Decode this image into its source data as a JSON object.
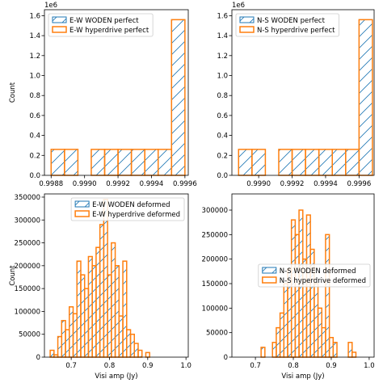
{
  "chart_data": [
    {
      "type": "histogram",
      "ylabel": "Count",
      "offset_text": "1e6",
      "legend": "upper left",
      "hatch": true,
      "bins": [
        0.9988,
        0.99888,
        0.99896,
        0.99904,
        0.99912,
        0.9992,
        0.99928,
        0.99936,
        0.99944,
        0.99952,
        0.9996
      ],
      "series": [
        {
          "name": "E-W WODEN perfect",
          "color": "#1f77b4",
          "style": "hatched",
          "values": [
            0.26,
            0.26,
            0,
            0.26,
            0.26,
            0.26,
            0.26,
            0.26,
            0.26,
            1.56
          ]
        },
        {
          "name": "E-W hyperdrive perfect",
          "color": "#ff7f0e",
          "style": "step",
          "values": [
            0.26,
            0.26,
            0,
            0.26,
            0.26,
            0.26,
            0.26,
            0.26,
            0.26,
            1.56
          ]
        }
      ],
      "xlim": [
        0.99876,
        0.99962
      ],
      "xticks": [
        0.9988,
        {
          "value": 0.999,
          "label": "0.9990"
        },
        0.9992,
        0.9994,
        0.9996
      ],
      "ylim": [
        0,
        1.66
      ],
      "yticks": [
        {
          "value": 0,
          "label": "0.0"
        },
        0.2,
        0.4,
        0.6,
        0.8,
        {
          "value": 1,
          "label": "1.0"
        },
        1.2,
        1.4,
        1.6
      ]
    },
    {
      "type": "histogram",
      "offset_text": "1e6",
      "legend": "upper left",
      "hatch": true,
      "bins": [
        0.99888,
        0.99896,
        0.99904,
        0.99912,
        0.9992,
        0.99928,
        0.99936,
        0.99944,
        0.99952,
        0.9996,
        0.99968
      ],
      "series": [
        {
          "name": "N-S WODEN perfect",
          "color": "#1f77b4",
          "style": "hatched",
          "values": [
            0.26,
            0.26,
            0,
            0.26,
            0.26,
            0.26,
            0.26,
            0.26,
            0.26,
            1.56
          ]
        },
        {
          "name": "N-S hyperdrive perfect",
          "color": "#ff7f0e",
          "style": "step",
          "values": [
            0.26,
            0.26,
            0,
            0.26,
            0.26,
            0.26,
            0.26,
            0.26,
            0.26,
            1.56
          ]
        }
      ],
      "xlim": [
        0.99884,
        0.99969
      ],
      "xticks": [
        {
          "value": 0.999,
          "label": "0.9990"
        },
        0.9992,
        0.9994,
        0.9996
      ],
      "ylim": [
        0,
        1.66
      ],
      "yticks": [
        {
          "value": 0,
          "label": "0.0"
        },
        0.2,
        0.4,
        0.6,
        0.8,
        {
          "value": 1,
          "label": "1.0"
        },
        1.2,
        1.4,
        1.6
      ]
    },
    {
      "type": "histogram",
      "ylabel": "Count",
      "xlabel": "Visi amp (Jy)",
      "legend": "upper right",
      "hatch": true,
      "bins": [
        0.645,
        0.655,
        0.665,
        0.675,
        0.685,
        0.695,
        0.705,
        0.715,
        0.725,
        0.735,
        0.745,
        0.755,
        0.765,
        0.775,
        0.785,
        0.795,
        0.805,
        0.815,
        0.825,
        0.835,
        0.845,
        0.855,
        0.865,
        0.875,
        0.885,
        0.895,
        0.905
      ],
      "series": [
        {
          "name": "E-W WODEN deformed",
          "color": "#1f77b4",
          "style": "hatched",
          "values": [
            15000,
            5000,
            45000,
            80000,
            60000,
            110000,
            95000,
            210000,
            180000,
            150000,
            220000,
            200000,
            240000,
            290000,
            345000,
            180000,
            250000,
            200000,
            90000,
            210000,
            60000,
            50000,
            30000,
            15000,
            0,
            10000
          ]
        },
        {
          "name": "E-W hyperdrive deformed",
          "color": "#ff7f0e",
          "style": "step",
          "values": [
            15000,
            5000,
            45000,
            80000,
            60000,
            110000,
            95000,
            210000,
            180000,
            150000,
            220000,
            200000,
            240000,
            290000,
            345000,
            180000,
            250000,
            200000,
            90000,
            210000,
            60000,
            50000,
            30000,
            15000,
            0,
            10000
          ]
        }
      ],
      "xlim": [
        0.63,
        1.006
      ],
      "xticks": [
        0.7,
        0.8,
        0.9,
        {
          "value": 1,
          "label": "1.0"
        }
      ],
      "ylim": [
        0,
        357000
      ],
      "yticks": [
        0,
        50000,
        100000,
        150000,
        200000,
        250000,
        300000,
        350000
      ]
    },
    {
      "type": "histogram",
      "xlabel": "Visi amp (Jy)",
      "legend": "center right",
      "hatch": true,
      "bins": [
        0.715,
        0.725,
        0.735,
        0.745,
        0.755,
        0.765,
        0.775,
        0.785,
        0.795,
        0.805,
        0.815,
        0.825,
        0.835,
        0.845,
        0.855,
        0.865,
        0.875,
        0.885,
        0.895,
        0.905,
        0.915,
        0.925,
        0.935,
        0.945,
        0.955,
        0.965,
        0.975
      ],
      "series": [
        {
          "name": "N-S WODEN deformed",
          "color": "#1f77b4",
          "style": "hatched",
          "values": [
            20000,
            0,
            0,
            30000,
            60000,
            90000,
            150000,
            180000,
            280000,
            250000,
            300000,
            200000,
            290000,
            220000,
            150000,
            100000,
            60000,
            250000,
            40000,
            30000,
            0,
            0,
            0,
            30000,
            10000,
            0
          ]
        },
        {
          "name": "N-S hyperdrive deformed",
          "color": "#ff7f0e",
          "style": "step",
          "values": [
            20000,
            0,
            0,
            30000,
            60000,
            90000,
            150000,
            180000,
            280000,
            250000,
            300000,
            200000,
            290000,
            220000,
            150000,
            100000,
            60000,
            250000,
            40000,
            30000,
            0,
            0,
            0,
            30000,
            10000,
            0
          ]
        }
      ],
      "xlim": [
        0.638,
        1.013
      ],
      "xticks": [
        0.7,
        0.8,
        0.9,
        {
          "value": 1,
          "label": "1.0"
        }
      ],
      "ylim": [
        0,
        333000
      ],
      "yticks": [
        0,
        50000,
        100000,
        150000,
        200000,
        250000,
        300000
      ]
    }
  ]
}
